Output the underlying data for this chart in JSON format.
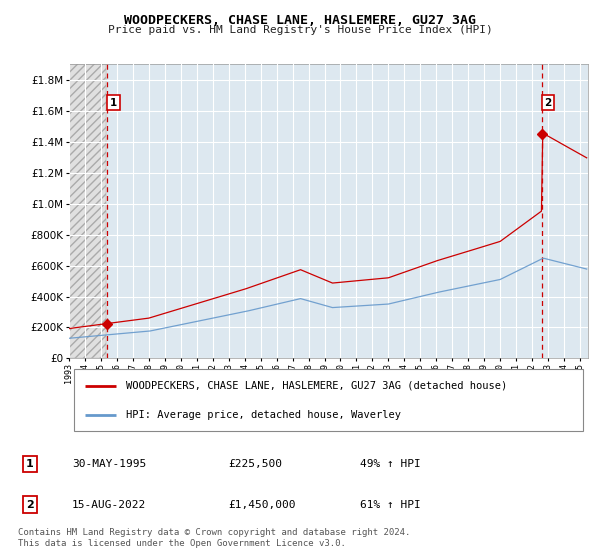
{
  "title": "WOODPECKERS, CHASE LANE, HASLEMERE, GU27 3AG",
  "subtitle": "Price paid vs. HM Land Registry's House Price Index (HPI)",
  "ylim": [
    0,
    1900000
  ],
  "yticks": [
    0,
    200000,
    400000,
    600000,
    800000,
    1000000,
    1200000,
    1400000,
    1600000,
    1800000
  ],
  "xmin": 1993.0,
  "xmax": 2025.5,
  "xtick_years": [
    1993,
    1994,
    1995,
    1996,
    1997,
    1998,
    1999,
    2000,
    2001,
    2002,
    2003,
    2004,
    2005,
    2006,
    2007,
    2008,
    2009,
    2010,
    2011,
    2012,
    2013,
    2014,
    2015,
    2016,
    2017,
    2018,
    2019,
    2020,
    2021,
    2022,
    2023,
    2024,
    2025
  ],
  "hpi_color": "#6699cc",
  "price_color": "#cc0000",
  "marker1_x": 1995.41,
  "marker1_y": 225500,
  "marker2_x": 2022.62,
  "marker2_y": 1450000,
  "vline1_x": 1995.41,
  "vline2_x": 2022.62,
  "annotation1": "1",
  "annotation2": "2",
  "legend_label1": "WOODPECKERS, CHASE LANE, HASLEMERE, GU27 3AG (detached house)",
  "legend_label2": "HPI: Average price, detached house, Waverley",
  "table_row1_num": "1",
  "table_row1_date": "30-MAY-1995",
  "table_row1_price": "£225,500",
  "table_row1_hpi": "49% ↑ HPI",
  "table_row2_num": "2",
  "table_row2_date": "15-AUG-2022",
  "table_row2_price": "£1,450,000",
  "table_row2_hpi": "61% ↑ HPI",
  "footer": "Contains HM Land Registry data © Crown copyright and database right 2024.\nThis data is licensed under the Open Government Licence v3.0.",
  "plot_bg_color": "#dde8f0",
  "hatch_bg_color": "#e0e0e0",
  "grid_color": "#ffffff",
  "hatch_end_x": 1995.3
}
